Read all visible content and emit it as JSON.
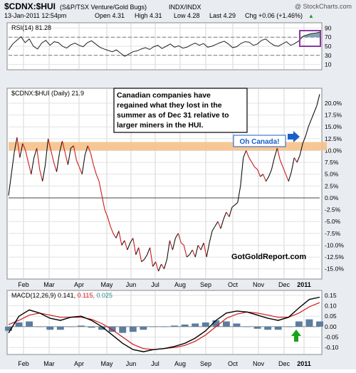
{
  "header": {
    "symbol_title": "$CDNX:$HUI",
    "description": "(S&P/TSX Venture/Gold Bugs)",
    "exchange": "INDX/INDX",
    "watermark": "@ StockCharts.com",
    "date_time": "13-Jan-2011 12:54pm",
    "open_label": "Open 4.31",
    "high_label": "High 4.31",
    "low_label": "Low 4.28",
    "last_label": "Last 4.29",
    "change_label": "Chg +0.06 (+1.46%)",
    "change_arrow": "▲"
  },
  "rsi_panel": {
    "label": "RSI(14) 81.28",
    "tick_labels": [
      "90",
      "70",
      "50",
      "30",
      "10"
    ],
    "overbought_box_color": "#8a3a9e"
  },
  "price_panel": {
    "label": "$CDNX:$HUI (Daily) 21.9",
    "tick_labels": [
      "20.0%",
      "17.5%",
      "15.0%",
      "12.5%",
      "10.0%",
      "7.5%",
      "5.0%",
      "2.5%",
      "0.0%",
      "-2.5%",
      "-5.0%",
      "-7.5%",
      "-10.0%",
      "-12.5%",
      "-15.0%"
    ],
    "annotation_text": [
      "Canadian companies have",
      "regained what they lost in the",
      "summer as of Dec 31 relative to",
      "larger miners in the HUI."
    ],
    "callout_label": "Oh Canada!",
    "source_credit": "GotGoldReport.com",
    "band_color": "#f5c18a",
    "callout_color": "#1a5ec8"
  },
  "macd_panel": {
    "label_prefix": "MACD(12,26,9)",
    "macd_value": "0.141,",
    "signal_value": "0.115,",
    "hist_value": "0.025",
    "tick_labels": [
      "0.15",
      "0.10",
      "0.05",
      "0.00",
      "-0.05",
      "-0.10"
    ],
    "arrow_color": "#1aa31a"
  },
  "x_axis": {
    "month_labels": [
      "Feb",
      "Mar",
      "Apr",
      "May",
      "Jun",
      "Jul",
      "Aug",
      "Sep",
      "Oct",
      "Nov",
      "Dec",
      "2011"
    ]
  },
  "chart_data": {
    "type": "line",
    "months": [
      "Feb",
      "Mar",
      "Apr",
      "May",
      "Jun",
      "Jul",
      "Aug",
      "Sep",
      "Oct",
      "Nov",
      "Dec",
      "2011"
    ],
    "price": {
      "name": "$CDNX:$HUI (Daily)",
      "ylim": [
        -17,
        23
      ],
      "highlight_band": [
        10.0,
        11.8
      ],
      "values": [
        0.5,
        5.0,
        9.5,
        12.8,
        8.5,
        11.5,
        10.0,
        7.5,
        5.0,
        8.5,
        10.5,
        6.0,
        3.5,
        7.0,
        12.5,
        10.0,
        7.5,
        5.5,
        9.5,
        12.0,
        9.5,
        7.0,
        10.5,
        11.0,
        8.0,
        6.5,
        5.0,
        9.0,
        11.0,
        9.5,
        7.0,
        5.0,
        3.5,
        0.5,
        -2.5,
        -4.0,
        -6.0,
        -7.5,
        -8.5,
        -7.0,
        -10.0,
        -9.0,
        -11.0,
        -9.5,
        -8.5,
        -12.0,
        -10.5,
        -13.5,
        -13.0,
        -12.0,
        -10.5,
        -14.5,
        -13.5,
        -15.5,
        -14.0,
        -15.0,
        -13.0,
        -9.0,
        -11.0,
        -8.5,
        -7.5,
        -9.5,
        -10.0,
        -12.5,
        -12.0,
        -11.0,
        -12.5,
        -10.0,
        -11.0,
        -9.5,
        -12.5,
        -9.5,
        -7.0,
        -6.0,
        -5.0,
        -6.5,
        -4.5,
        -3.0,
        -4.0,
        -2.0,
        -1.5,
        -1.0,
        2.5,
        8.5,
        10.0,
        8.5,
        7.5,
        6.5,
        6.0,
        4.5,
        5.0,
        3.5,
        4.5,
        6.0,
        8.5,
        10.5,
        8.0,
        6.5,
        5.0,
        3.5,
        5.5,
        8.5,
        7.5,
        9.0,
        11.5,
        13.0,
        15.0,
        16.5,
        18.0,
        19.5,
        21.9
      ]
    },
    "rsi": {
      "name": "RSI(14)",
      "ylim": [
        0,
        100
      ],
      "reference_lines": [
        70,
        30
      ],
      "values": [
        42,
        55,
        63,
        71,
        58,
        66,
        50,
        44,
        57,
        63,
        52,
        60,
        58,
        50,
        46,
        53,
        57,
        52,
        49,
        58,
        62,
        55,
        48,
        44,
        41,
        38,
        42,
        35,
        28,
        33,
        38,
        40,
        44,
        47,
        43,
        49,
        52,
        45,
        50,
        55,
        48,
        51,
        46,
        48,
        53,
        57,
        52,
        56,
        48,
        50,
        54,
        58,
        61,
        55,
        47,
        49,
        56,
        60,
        59,
        52,
        55,
        63,
        66,
        58,
        52,
        50,
        55,
        60,
        52,
        56,
        62,
        72,
        75,
        78,
        79,
        81
      ]
    },
    "macd": {
      "name": "MACD(12,26,9)",
      "ylim": [
        -0.13,
        0.17
      ],
      "values": [
        -0.03,
        0.05,
        0.08,
        0.065,
        0.04,
        0.03,
        0.045,
        0.05,
        0.03,
        0.0,
        -0.04,
        -0.08,
        -0.11,
        -0.12,
        -0.11,
        -0.105,
        -0.095,
        -0.08,
        -0.055,
        -0.02,
        0.03,
        0.065,
        0.075,
        0.07,
        0.055,
        0.04,
        0.03,
        0.045,
        0.09,
        0.13,
        0.141
      ],
      "signal": [
        0.01,
        0.03,
        0.055,
        0.065,
        0.055,
        0.045,
        0.045,
        0.045,
        0.035,
        0.015,
        -0.015,
        -0.05,
        -0.085,
        -0.105,
        -0.11,
        -0.105,
        -0.1,
        -0.09,
        -0.07,
        -0.04,
        0.0,
        0.04,
        0.06,
        0.07,
        0.065,
        0.055,
        0.045,
        0.045,
        0.065,
        0.095,
        0.115
      ],
      "histogram": [
        -0.02,
        0.02,
        0.025,
        0.0,
        -0.015,
        -0.015,
        0.0,
        0.005,
        -0.005,
        -0.015,
        -0.025,
        -0.03,
        -0.025,
        -0.015,
        0.0,
        0.0,
        0.005,
        0.01,
        0.015,
        0.02,
        0.03,
        0.025,
        0.015,
        0.0,
        -0.01,
        -0.015,
        -0.015,
        0.0,
        0.025,
        0.035,
        0.025
      ]
    }
  }
}
